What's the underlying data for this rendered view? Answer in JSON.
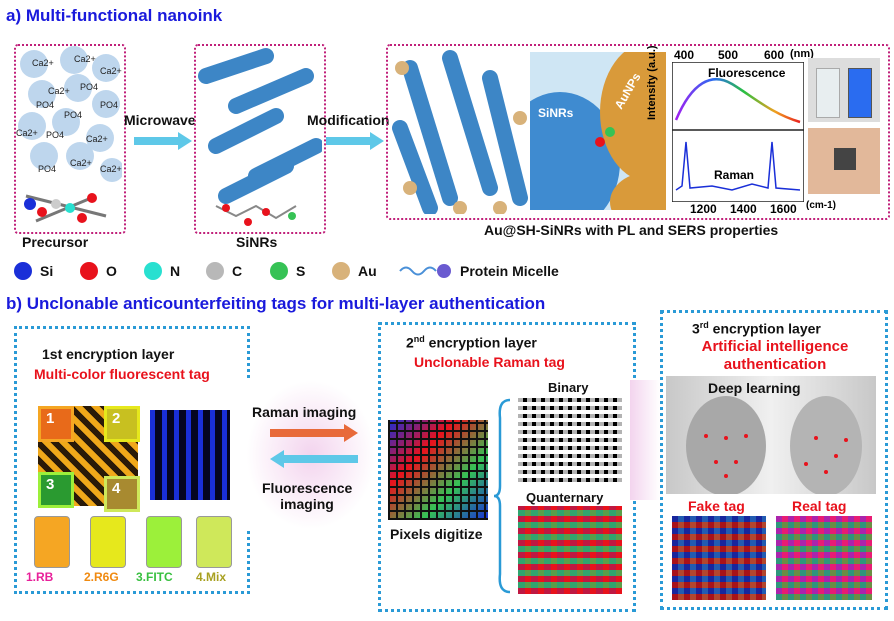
{
  "section_a": {
    "title": "a) Multi-functional nanoink"
  },
  "section_b": {
    "title": "b)  Unclonable anticounterfeiting tags for multi-layer authentication"
  },
  "precursor": {
    "label": "Precursor",
    "ions": [
      "Ca2+",
      "Ca2+",
      "Ca2+",
      "PO4",
      "PO4",
      "PO4",
      "Ca2+",
      "PO4",
      "Ca2+",
      "PO4",
      "Ca2+",
      "Ca2+",
      "PO4",
      "Ca2+"
    ]
  },
  "sinrs": {
    "label": "SiNRs"
  },
  "steps": {
    "microwave": "Microwave",
    "modification": "Modification"
  },
  "product": {
    "label": "Au@SH-SiNRs with PL and SERS properties",
    "sinrs_tag": "SiNRs",
    "aunps_tag": "AuNPs"
  },
  "spectrum": {
    "top_axis": [
      "400",
      "500",
      "600"
    ],
    "top_unit": "(nm)",
    "fluorescence": "Fluorescence",
    "raman": "Raman",
    "ylabel": "Intensity (a.u.)",
    "bottom_axis": [
      "1200",
      "1400",
      "1600"
    ],
    "bottom_unit": "(cm-1)"
  },
  "legend": [
    {
      "name": "Si",
      "color": "#1a2fd8"
    },
    {
      "name": "O",
      "color": "#e8121c"
    },
    {
      "name": "N",
      "color": "#28e0d0"
    },
    {
      "name": "C",
      "color": "#b8b8b8"
    },
    {
      "name": "S",
      "color": "#36c255"
    },
    {
      "name": "Au",
      "color": "#d8b27a"
    },
    {
      "name": "Protein Micelle",
      "color": "#6a5ad0"
    }
  ],
  "layer1": {
    "title": "1st encryption layer",
    "subtitle": "Multi-color fluorescent tag",
    "quadrants": [
      "1",
      "2",
      "3",
      "4"
    ],
    "vials": [
      {
        "label": "1.RB",
        "color": "#f5a623",
        "text": "#e8209a"
      },
      {
        "label": "2.R6G",
        "color": "#e6e81c",
        "text": "#f08a10"
      },
      {
        "label": "3.FITC",
        "color": "#9cf03a",
        "text": "#38c040"
      },
      {
        "label": "4.Mix",
        "color": "#cfe85a",
        "text": "#a8a020"
      }
    ]
  },
  "imaging": {
    "raman": "Raman imaging",
    "fluorescence": "Fluorescence imaging"
  },
  "layer2": {
    "title_pre": "2",
    "title_sup": "nd",
    "title_post": " encryption layer",
    "subtitle": "Unclonable Raman tag",
    "binary": "Binary",
    "quanternary": "Quanternary",
    "pixels": "Pixels digitize"
  },
  "layer3": {
    "title_pre": "3",
    "title_sup": "rd",
    "title_post": " encryption layer",
    "subtitle1": "Artificial intelligence",
    "subtitle2": "authentication",
    "deep": "Deep learning",
    "fake": "Fake tag",
    "real": "Real tag"
  }
}
